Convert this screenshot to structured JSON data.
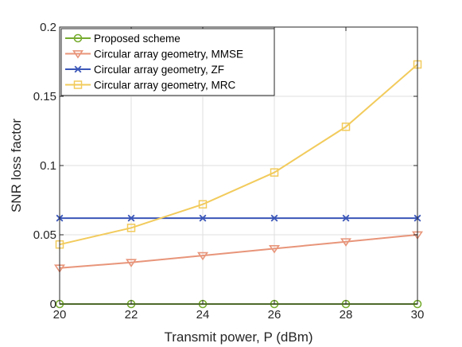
{
  "chart_data": {
    "type": "line",
    "title": "",
    "xlabel": "Transmit power, P (dBm)",
    "ylabel": "SNR loss factor",
    "xlim": [
      20,
      30
    ],
    "ylim": [
      0,
      0.2
    ],
    "x_ticks": [
      "20",
      "22",
      "24",
      "26",
      "28",
      "30"
    ],
    "y_ticks": [
      "0",
      "0.05",
      "0.1",
      "0.15",
      "0.2"
    ],
    "grid": true,
    "legend_position": "top-left",
    "x": [
      20,
      22,
      24,
      26,
      28,
      30
    ],
    "series": [
      {
        "name": "Proposed scheme",
        "marker": "circle",
        "color": "#77AC30",
        "values": [
          0,
          0,
          0,
          0,
          0,
          0
        ]
      },
      {
        "name": "Circular array geometry, MMSE",
        "marker": "triangle-down",
        "color": "#E8957A",
        "values": [
          0.026,
          0.03,
          0.035,
          0.04,
          0.045,
          0.05
        ]
      },
      {
        "name": "Circular array geometry, ZF",
        "marker": "x",
        "color": "#3A56B8",
        "values": [
          0.062,
          0.062,
          0.062,
          0.062,
          0.062,
          0.062
        ]
      },
      {
        "name": "Circular array geometry, MRC",
        "marker": "square",
        "color": "#F2CB5C",
        "values": [
          0.043,
          0.055,
          0.072,
          0.095,
          0.128,
          0.173
        ]
      }
    ]
  }
}
